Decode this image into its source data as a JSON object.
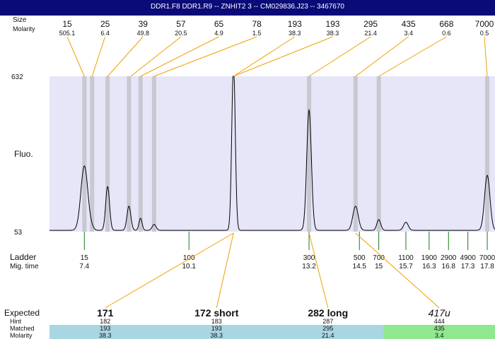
{
  "title": "DDR1.F8  DDR1.R9 -- ZNHIT2 3 -- CM029836.J23 -- 3467670",
  "colors": {
    "title_bg": "#0a0a78",
    "plot_bg": "#e6e6f8",
    "peak_band": "#c8c8d2",
    "leader_line": "#f0a000",
    "ladder_tick": "#1a7a1a",
    "matched_blue": "#a8d6e2",
    "matched_green": "#8fe88f"
  },
  "chart_data": {
    "type": "line",
    "title": "DDR1.F8  DDR1.R9 -- ZNHIT2 3 -- CM029836.J23 -- 3467670",
    "ylabel": "Fluo.",
    "ylim": [
      53,
      632
    ],
    "y_tick_labels": [
      "632",
      "53"
    ],
    "xlabel": "Mig. time",
    "x_range": [
      6.5,
      18.0
    ],
    "top_labels": {
      "size": "Size",
      "molarity": "Molarity"
    },
    "peaks": [
      {
        "size": "15",
        "molarity": "505.1",
        "time": 7.4
      },
      {
        "size": "25",
        "molarity": "6.4",
        "time": 7.6
      },
      {
        "size": "39",
        "molarity": "49.8",
        "time": 8.0
      },
      {
        "size": "57",
        "molarity": "20.5",
        "time": 8.6
      },
      {
        "size": "65",
        "molarity": "4.9",
        "time": 8.85
      },
      {
        "size": "78",
        "molarity": "1.5",
        "time": 9.2
      },
      {
        "size": "193",
        "molarity": "38.3",
        "time": 11.25
      },
      {
        "size": "193",
        "molarity": "38.3",
        "time": 11.25
      },
      {
        "size": "295",
        "molarity": "21.4",
        "time": 13.2
      },
      {
        "size": "435",
        "molarity": "3.4",
        "time": 14.4
      },
      {
        "size": "668",
        "molarity": "0.6",
        "time": 15.0
      },
      {
        "size": "7000",
        "molarity": "0.5",
        "time": 17.8
      }
    ],
    "band_times": [
      7.4,
      7.6,
      8.0,
      8.55,
      8.85,
      9.2,
      13.2,
      14.4,
      15.0,
      17.8
    ],
    "trace": {
      "baseline": 58,
      "components": [
        {
          "t": 7.4,
          "h": 240,
          "w": 0.09
        },
        {
          "t": 7.6,
          "h": 6,
          "w": 0.05
        },
        {
          "t": 8.0,
          "h": 163,
          "w": 0.05
        },
        {
          "t": 8.55,
          "h": 90,
          "w": 0.05
        },
        {
          "t": 8.85,
          "h": 45,
          "w": 0.04
        },
        {
          "t": 9.2,
          "h": 22,
          "w": 0.05
        },
        {
          "t": 11.25,
          "h": 625,
          "w": 0.045
        },
        {
          "t": 13.2,
          "h": 448,
          "w": 0.06
        },
        {
          "t": 14.4,
          "h": 90,
          "w": 0.07
        },
        {
          "t": 15.0,
          "h": 40,
          "w": 0.05
        },
        {
          "t": 15.7,
          "h": 30,
          "w": 0.06
        },
        {
          "t": 17.8,
          "h": 205,
          "w": 0.07
        }
      ]
    },
    "ladder": {
      "label": "Ladder",
      "time_label": "Mig. time",
      "items": [
        {
          "size": "15",
          "time": 7.4,
          "time_label": "7.4"
        },
        {
          "size": "100",
          "time": 10.1,
          "time_label": "10.1"
        },
        {
          "size": "300",
          "time": 13.2,
          "time_label": "13.2"
        },
        {
          "size": "500",
          "time": 14.5,
          "time_label": "14.5"
        },
        {
          "size": "700",
          "time": 15.0,
          "time_label": "15"
        },
        {
          "size": "1100",
          "time": 15.7,
          "time_label": "15.7"
        },
        {
          "size": "1900",
          "time": 16.3,
          "time_label": "16.3"
        },
        {
          "size": "2900",
          "time": 16.8,
          "time_label": "16.8"
        },
        {
          "size": "4900",
          "time": 17.3,
          "time_label": "17.3"
        },
        {
          "size": "7000",
          "time": 17.8,
          "time_label": "17.8"
        }
      ]
    },
    "row_labels": {
      "expected": "Expected",
      "hint": "Hint",
      "matched": "Matched",
      "molarity": "Molarity"
    },
    "expected": [
      {
        "label": "171",
        "hint": "182",
        "matched": "193",
        "molarity": "38.3",
        "bold": true,
        "italic": false,
        "peak_time": 11.25,
        "match_color": "blue"
      },
      {
        "label": "172 short",
        "hint": "183",
        "matched": "193",
        "molarity": "38.3",
        "bold": true,
        "italic": false,
        "peak_time": 11.25,
        "match_color": "blue"
      },
      {
        "label": "282 long",
        "hint": "287",
        "matched": "295",
        "molarity": "21.4",
        "bold": true,
        "italic": false,
        "peak_time": 13.2,
        "match_color": "blue"
      },
      {
        "label": "417u",
        "hint": "444",
        "matched": "435",
        "molarity": "3.4",
        "bold": false,
        "italic": true,
        "peak_time": 14.4,
        "match_color": "green"
      }
    ]
  }
}
